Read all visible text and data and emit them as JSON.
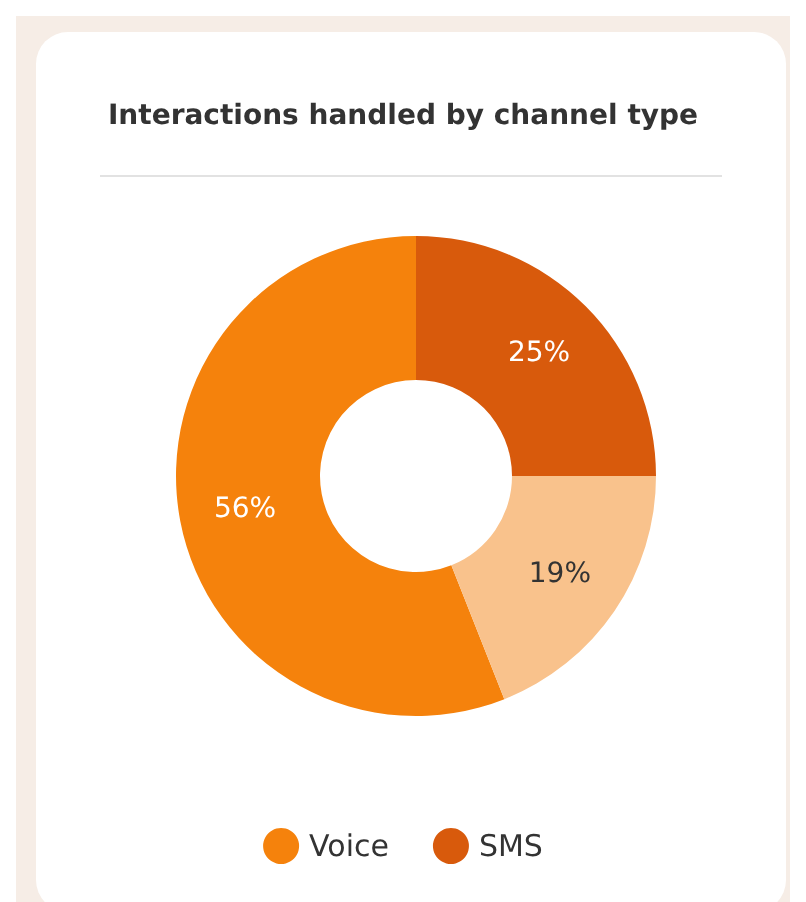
{
  "chart_data": {
    "type": "donut",
    "title": "Interactions handled by channel type",
    "categories": [
      "Voice",
      "SMS",
      null
    ],
    "values": [
      56,
      25,
      19
    ],
    "value_labels": [
      "56%",
      "25%",
      "19%"
    ],
    "colors": [
      "#f5820c",
      "#d85a0c",
      "#f9c28c"
    ],
    "legend": "bottom"
  }
}
